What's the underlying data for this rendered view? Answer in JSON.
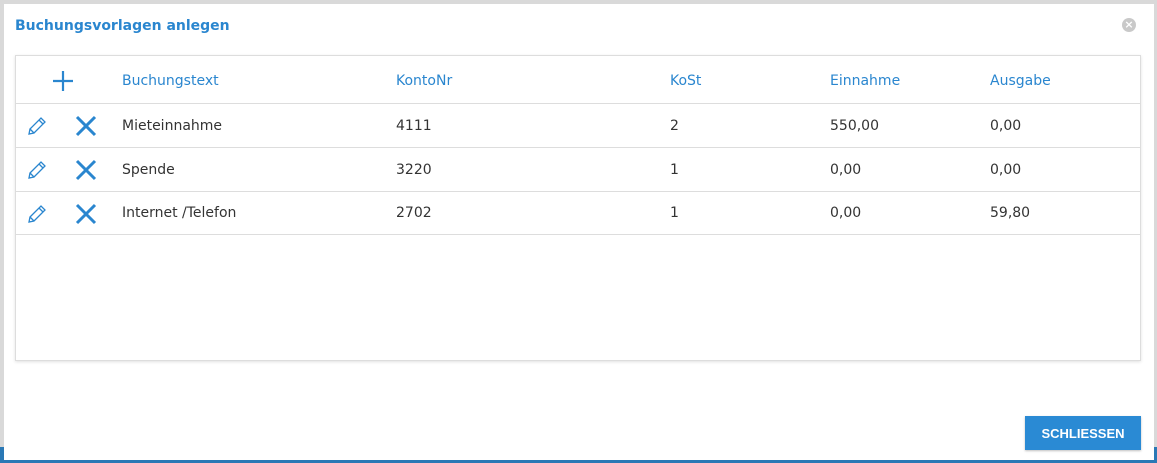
{
  "dialog": {
    "title": "Buchungsvorlagen anlegen",
    "close_label": "×",
    "close_button": "SCHLIESSEN"
  },
  "table": {
    "headers": [
      "Buchungstext",
      "KontoNr",
      "KoSt",
      "Einnahme",
      "Ausgabe"
    ],
    "rows": [
      [
        "Mieteinnahme",
        "4111",
        "2",
        "550,00",
        "0,00"
      ],
      [
        "Spende",
        "3220",
        "1",
        "0,00",
        "0,00"
      ],
      [
        "Internet /Telefon",
        "2702",
        "1",
        "0,00",
        "59,80"
      ]
    ]
  },
  "colors": {
    "accent": "#2a86cf"
  }
}
